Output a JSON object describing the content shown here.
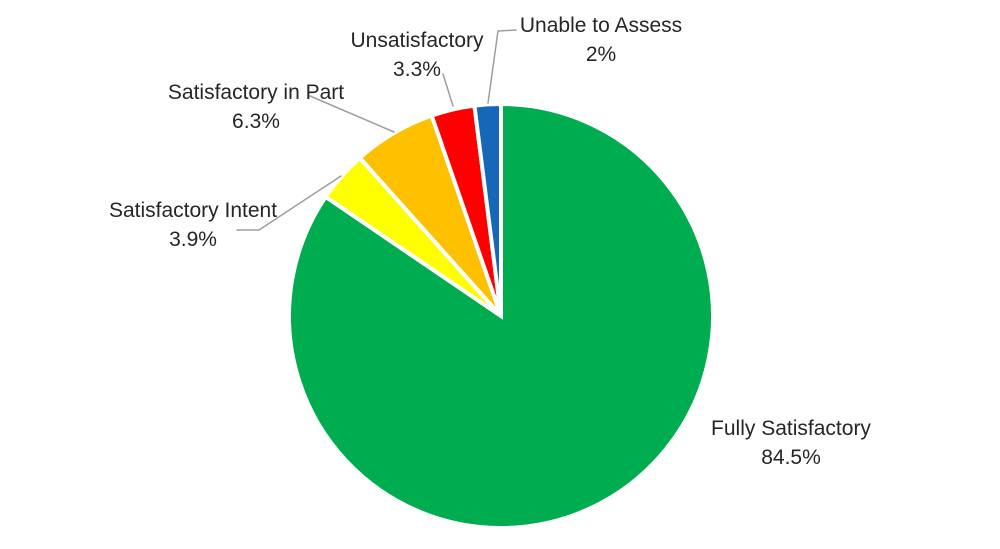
{
  "chart_data": {
    "type": "pie",
    "categories": [
      "Fully Satisfactory",
      "Satisfactory Intent",
      "Satisfactory in Part",
      "Unsatisfactory",
      "Unable to Assess"
    ],
    "values": [
      84.5,
      3.9,
      6.3,
      3.3,
      2
    ],
    "value_labels": [
      "84.5%",
      "3.9%",
      "6.3%",
      "3.3%",
      "2%"
    ],
    "colors": [
      "#00AC50",
      "#FFFF00",
      "#FFC000",
      "#FF0000",
      "#1667B8"
    ],
    "start_angle_deg": 0,
    "direction": "clockwise",
    "total": 100,
    "legend_position": "none",
    "label_style": "category name and percentage outside slices, small slices use gray leader lines",
    "slice_border_color": "#FFFFFF",
    "label_color": "#262626",
    "leader_line_color": "#9E9E9E",
    "background_color": "#FFFFFF"
  }
}
